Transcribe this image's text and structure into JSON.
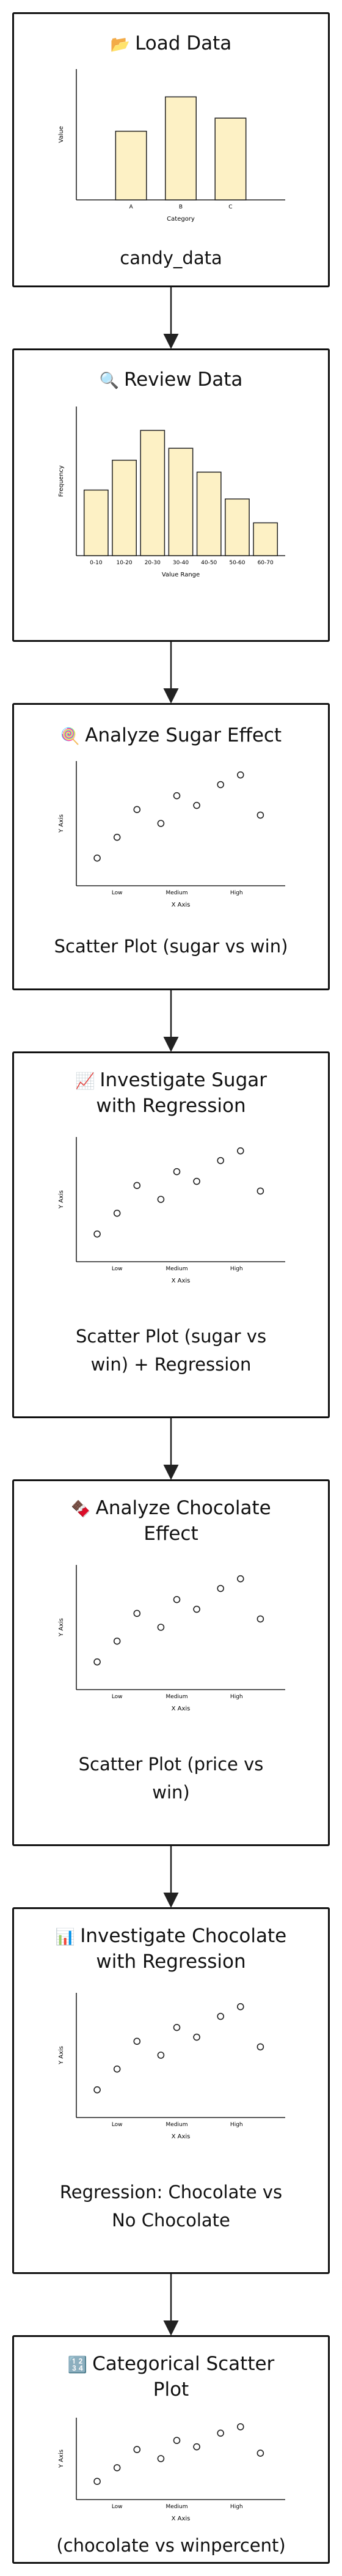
{
  "steps": [
    {
      "title": "Load Data",
      "icon": "📂",
      "icon_name": "folder-icon",
      "caption": "candy_data",
      "chart_data": {
        "type": "bar",
        "categories": [
          "A",
          "B",
          "C"
        ],
        "values": [
          4.2,
          6.3,
          5.0
        ],
        "ylim": [
          0,
          8
        ],
        "xlabel": "Category",
        "ylabel": "Value",
        "bar_color": "#fdf1c5"
      }
    },
    {
      "title": "Review Data",
      "icon": "🔍",
      "icon_name": "magnifier-icon",
      "caption": "",
      "chart_data": {
        "type": "bar",
        "categories": [
          "0-10",
          "10-20",
          "20-30",
          "30-40",
          "40-50",
          "50-60",
          "60-70"
        ],
        "values": [
          2.2,
          3.2,
          4.2,
          3.6,
          2.8,
          1.9,
          1.1
        ],
        "ylim": [
          0,
          5
        ],
        "xlabel": "Value Range",
        "ylabel": "Frequency",
        "bar_color": "#fdf1c5"
      }
    },
    {
      "title": "Analyze Sugar Effect",
      "icon": "🍭",
      "icon_name": "lollipop-icon",
      "caption": "Scatter Plot (sugar vs win)",
      "chart_data": {
        "type": "scatter",
        "x_ticks": [
          "Low",
          "Medium",
          "High"
        ],
        "points": [
          [
            0.4,
            2
          ],
          [
            0.9,
            3.5
          ],
          [
            1.4,
            5.5
          ],
          [
            2.0,
            4.5
          ],
          [
            2.4,
            6.5
          ],
          [
            2.9,
            5.8
          ],
          [
            3.5,
            7.3
          ],
          [
            4.0,
            8.0
          ],
          [
            4.5,
            5.1
          ]
        ],
        "xlim": [
          0,
          5
        ],
        "ylim": [
          0,
          9
        ],
        "xlabel": "X Axis",
        "ylabel": "Y Axis"
      }
    },
    {
      "title": "Investigate Sugar with Regression",
      "title_lines": [
        "Investigate Sugar",
        "with Regression"
      ],
      "icon": "📈",
      "icon_name": "trend-chart-icon",
      "caption": "Scatter Plot (sugar vs win) + Regression",
      "caption_lines": [
        "Scatter Plot (sugar vs",
        "win) + Regression"
      ],
      "chart_data": {
        "type": "scatter",
        "x_ticks": [
          "Low",
          "Medium",
          "High"
        ],
        "points": [
          [
            0.4,
            2
          ],
          [
            0.9,
            3.5
          ],
          [
            1.4,
            5.5
          ],
          [
            2.0,
            4.5
          ],
          [
            2.4,
            6.5
          ],
          [
            2.9,
            5.8
          ],
          [
            3.5,
            7.3
          ],
          [
            4.0,
            8.0
          ],
          [
            4.5,
            5.1
          ]
        ],
        "xlim": [
          0,
          5
        ],
        "ylim": [
          0,
          9
        ],
        "xlabel": "X Axis",
        "ylabel": "Y Axis"
      }
    },
    {
      "title": "Analyze Chocolate Effect",
      "title_lines": [
        "Analyze Chocolate",
        "Effect"
      ],
      "icon": "🍫",
      "icon_name": "chocolate-icon",
      "caption": "Scatter Plot (price vs win)",
      "caption_lines": [
        "Scatter Plot (price vs",
        "win)"
      ],
      "chart_data": {
        "type": "scatter",
        "x_ticks": [
          "Low",
          "Medium",
          "High"
        ],
        "points": [
          [
            0.4,
            2
          ],
          [
            0.9,
            3.5
          ],
          [
            1.4,
            5.5
          ],
          [
            2.0,
            4.5
          ],
          [
            2.4,
            6.5
          ],
          [
            2.9,
            5.8
          ],
          [
            3.5,
            7.3
          ],
          [
            4.0,
            8.0
          ],
          [
            4.5,
            5.1
          ]
        ],
        "xlim": [
          0,
          5
        ],
        "ylim": [
          0,
          9
        ],
        "xlabel": "X Axis",
        "ylabel": "Y Axis"
      }
    },
    {
      "title": "Investigate Chocolate with Regression",
      "title_lines": [
        "Investigate Chocolate",
        "with Regression"
      ],
      "icon": "📊",
      "icon_name": "bar-chart-icon",
      "caption": "Regression: Chocolate vs No Chocolate",
      "caption_lines": [
        "Regression: Chocolate vs",
        "No Chocolate"
      ],
      "chart_data": {
        "type": "scatter",
        "x_ticks": [
          "Low",
          "Medium",
          "High"
        ],
        "points": [
          [
            0.4,
            2
          ],
          [
            0.9,
            3.5
          ],
          [
            1.4,
            5.5
          ],
          [
            2.0,
            4.5
          ],
          [
            2.4,
            6.5
          ],
          [
            2.9,
            5.8
          ],
          [
            3.5,
            7.3
          ],
          [
            4.0,
            8.0
          ],
          [
            4.5,
            5.1
          ]
        ],
        "xlim": [
          0,
          5
        ],
        "ylim": [
          0,
          9
        ],
        "xlabel": "X Axis",
        "ylabel": "Y Axis"
      }
    },
    {
      "title": "Categorical Scatter Plot",
      "title_lines": [
        "Categorical Scatter",
        "Plot"
      ],
      "icon": "🔢",
      "icon_name": "numbers-icon",
      "caption": "(chocolate vs winpercent)",
      "chart_data": {
        "type": "scatter",
        "x_ticks": [
          "Low",
          "Medium",
          "High"
        ],
        "points": [
          [
            0.4,
            2
          ],
          [
            0.9,
            3.5
          ],
          [
            1.4,
            5.5
          ],
          [
            2.0,
            4.5
          ],
          [
            2.4,
            6.5
          ],
          [
            2.9,
            5.8
          ],
          [
            3.5,
            7.3
          ],
          [
            4.0,
            8.0
          ],
          [
            4.5,
            5.1
          ]
        ],
        "xlim": [
          0,
          5
        ],
        "ylim": [
          0,
          9
        ],
        "xlabel": "X Axis",
        "ylabel": "Y Axis"
      }
    }
  ]
}
